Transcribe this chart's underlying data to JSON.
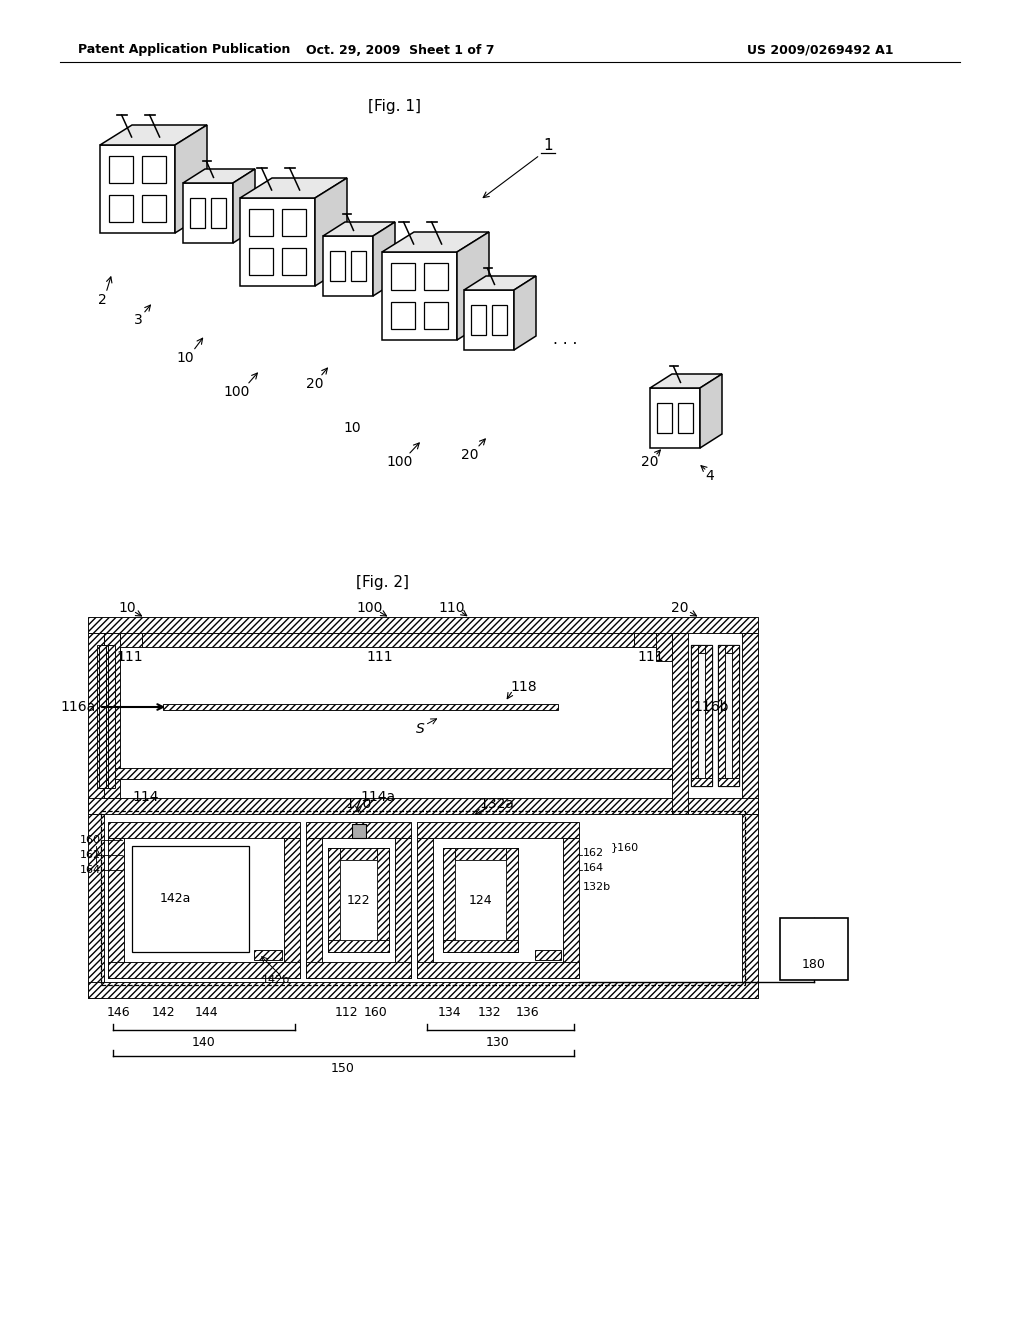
{
  "header_left": "Patent Application Publication",
  "header_center": "Oct. 29, 2009  Sheet 1 of 7",
  "header_right": "US 2009/0269492 A1",
  "bg_color": "#ffffff",
  "lw": 1.1
}
